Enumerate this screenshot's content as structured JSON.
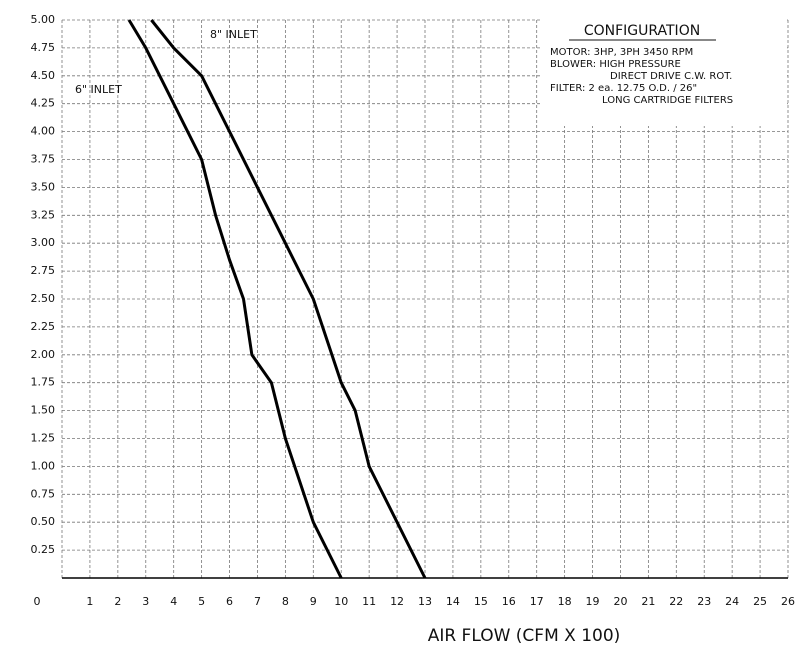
{
  "chart_data": {
    "type": "line",
    "xlabel": "AIR FLOW (CFM X 100)",
    "xlim": [
      0,
      26
    ],
    "ylim": [
      0,
      5
    ],
    "xticks": [
      0,
      1,
      2,
      3,
      4,
      5,
      6,
      7,
      8,
      9,
      10,
      11,
      12,
      13,
      14,
      15,
      16,
      17,
      18,
      19,
      20,
      21,
      22,
      23,
      24,
      25,
      26
    ],
    "yticks": [
      {
        "value": 0.25,
        "label": "0.25"
      },
      {
        "value": 0.5,
        "label": "0.50"
      },
      {
        "value": 0.75,
        "label": "0.75"
      },
      {
        "value": 1,
        "label": "1.00"
      },
      {
        "value": 1.25,
        "label": "1.25"
      },
      {
        "value": 1.5,
        "label": "1.50"
      },
      {
        "value": 1.75,
        "label": "1.75"
      },
      {
        "value": 2,
        "label": "2.00"
      },
      {
        "value": 2.25,
        "label": "2.25"
      },
      {
        "value": 2.5,
        "label": "2.50"
      },
      {
        "value": 2.75,
        "label": "2.75"
      },
      {
        "value": 3,
        "label": "3.00"
      },
      {
        "value": 3.25,
        "label": "3.25"
      },
      {
        "value": 3.5,
        "label": "3.50"
      },
      {
        "value": 3.75,
        "label": "3.75"
      },
      {
        "value": 4,
        "label": "4.00"
      },
      {
        "value": 4.25,
        "label": "4.25"
      },
      {
        "value": 4.5,
        "label": "4.50"
      },
      {
        "value": 4.75,
        "label": "4.75"
      },
      {
        "value": 5,
        "label": "5.00"
      }
    ],
    "grid": true,
    "series": [
      {
        "name": "6\" INLET",
        "color": "#000000",
        "x": [
          2.4,
          3,
          4,
          5,
          5.5,
          6,
          6.5,
          6.8,
          7.5,
          8,
          9,
          10
        ],
        "values": [
          5,
          4.75,
          4.25,
          3.75,
          3.25,
          2.85,
          2.5,
          2,
          1.75,
          1.25,
          0.5,
          0
        ]
      },
      {
        "name": "8\" INLET",
        "color": "#000000",
        "x": [
          3.2,
          4,
          5,
          6,
          7,
          8,
          9,
          10,
          10.5,
          11,
          13
        ],
        "values": [
          5,
          4.75,
          4.5,
          4,
          3.5,
          3,
          2.5,
          1.75,
          1.5,
          1,
          0
        ]
      }
    ],
    "configuration": {
      "title": "CONFIGURATION",
      "lines": [
        "MOTOR: 3HP, 3PH 3450 RPM",
        "BLOWER: HIGH PRESSURE",
        "DIRECT DRIVE C.W. ROT.",
        "FILTER: 2 ea. 12.75 O.D. / 26\"",
        "LONG CARTRIDGE FILTERS"
      ]
    }
  }
}
